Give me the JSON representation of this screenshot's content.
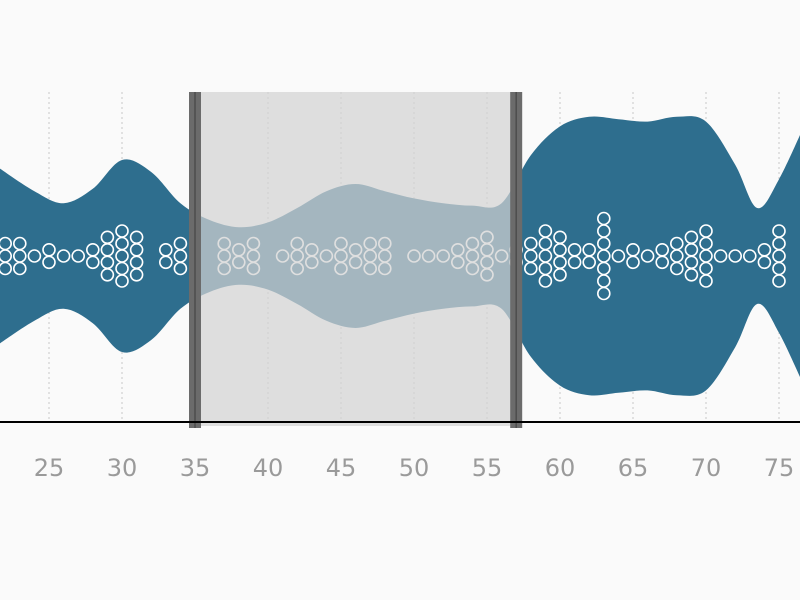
{
  "colors": {
    "background": "#fafafa",
    "violin": "#2e6e8e",
    "brush": "#d3d3d3",
    "brush_handle": "#6b6b6b",
    "axis": "#000000",
    "tick_text": "#9a9a9a",
    "dot_stroke": "#ffffff"
  },
  "chart_data": {
    "type": "violin-beeswarm",
    "xlim": [
      21.5,
      77
    ],
    "xticks": [
      25,
      30,
      35,
      40,
      45,
      50,
      55,
      60,
      65,
      70,
      75
    ],
    "tick_labels": [
      "25",
      "30",
      "35",
      "40",
      "45",
      "50",
      "55",
      "60",
      "65",
      "70",
      "75"
    ],
    "grid": "vertical dotted",
    "brush": {
      "from": 35,
      "to": 57
    },
    "density": [
      [
        21.5,
        0.37
      ],
      [
        24,
        0.27
      ],
      [
        26,
        0.22
      ],
      [
        28,
        0.28
      ],
      [
        30,
        0.4
      ],
      [
        32,
        0.35
      ],
      [
        34,
        0.22
      ],
      [
        36,
        0.15
      ],
      [
        38,
        0.12
      ],
      [
        40,
        0.14
      ],
      [
        42,
        0.2
      ],
      [
        44,
        0.27
      ],
      [
        46,
        0.3
      ],
      [
        48,
        0.27
      ],
      [
        50,
        0.24
      ],
      [
        52,
        0.22
      ],
      [
        54,
        0.21
      ],
      [
        56,
        0.22
      ],
      [
        58,
        0.42
      ],
      [
        60,
        0.54
      ],
      [
        62,
        0.58
      ],
      [
        64,
        0.57
      ],
      [
        66,
        0.56
      ],
      [
        68,
        0.58
      ],
      [
        70,
        0.56
      ],
      [
        72,
        0.38
      ],
      [
        73.5,
        0.2
      ],
      [
        75,
        0.32
      ],
      [
        77,
        0.58
      ]
    ],
    "columns": [
      [
        22,
        3
      ],
      [
        23,
        3
      ],
      [
        24,
        1
      ],
      [
        25,
        2
      ],
      [
        26,
        1
      ],
      [
        27,
        1
      ],
      [
        28,
        2
      ],
      [
        29,
        4
      ],
      [
        30,
        5
      ],
      [
        31,
        4
      ],
      [
        33,
        2
      ],
      [
        34,
        3
      ],
      [
        37,
        3
      ],
      [
        38,
        2
      ],
      [
        39,
        3
      ],
      [
        41,
        1
      ],
      [
        42,
        3
      ],
      [
        43,
        2
      ],
      [
        44,
        1
      ],
      [
        45,
        3
      ],
      [
        46,
        2
      ],
      [
        47,
        3
      ],
      [
        48,
        3
      ],
      [
        50,
        1
      ],
      [
        51,
        1
      ],
      [
        52,
        1
      ],
      [
        53,
        2
      ],
      [
        54,
        3
      ],
      [
        55,
        4
      ],
      [
        56,
        1
      ],
      [
        57,
        2
      ],
      [
        58,
        3
      ],
      [
        59,
        5
      ],
      [
        60,
        4
      ],
      [
        61,
        2
      ],
      [
        62,
        2
      ],
      [
        63,
        7
      ],
      [
        64,
        1
      ],
      [
        65,
        2
      ],
      [
        66,
        1
      ],
      [
        67,
        2
      ],
      [
        68,
        3
      ],
      [
        69,
        4
      ],
      [
        70,
        5
      ],
      [
        71,
        1
      ],
      [
        72,
        1
      ],
      [
        73,
        1
      ],
      [
        74,
        2
      ],
      [
        75,
        5
      ]
    ]
  }
}
